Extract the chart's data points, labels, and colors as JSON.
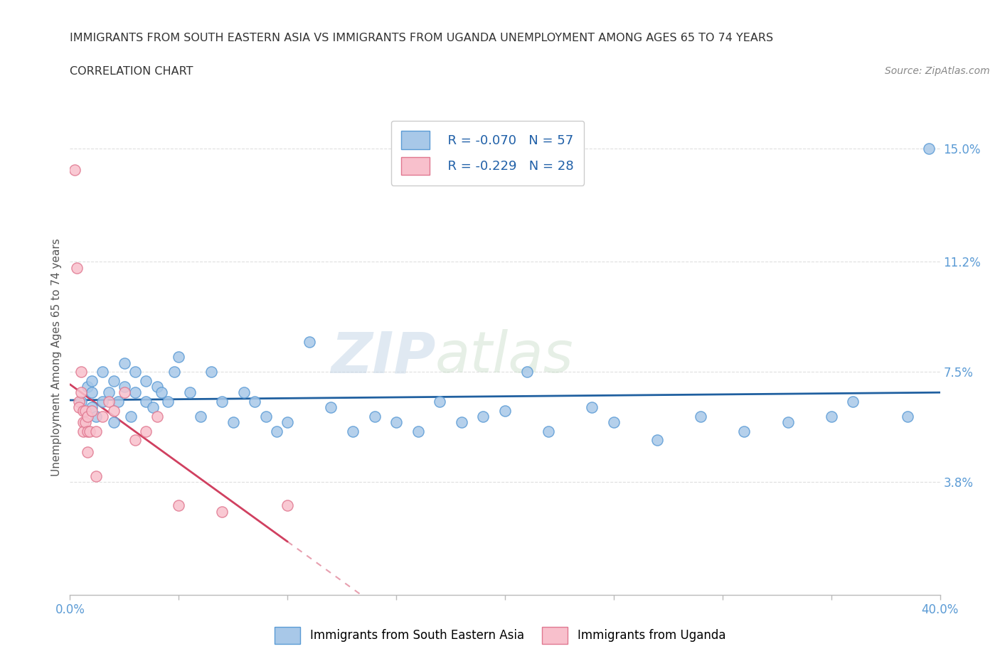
{
  "title_line1": "IMMIGRANTS FROM SOUTH EASTERN ASIA VS IMMIGRANTS FROM UGANDA UNEMPLOYMENT AMONG AGES 65 TO 74 YEARS",
  "title_line2": "CORRELATION CHART",
  "source": "Source: ZipAtlas.com",
  "ylabel": "Unemployment Among Ages 65 to 74 years",
  "xlim": [
    0.0,
    0.4
  ],
  "ylim": [
    0.0,
    0.16
  ],
  "xticks": [
    0.0,
    0.05,
    0.1,
    0.15,
    0.2,
    0.25,
    0.3,
    0.35,
    0.4
  ],
  "xtick_labels": [
    "0.0%",
    "",
    "",
    "",
    "",
    "",
    "",
    "",
    "40.0%"
  ],
  "ytick_right_labels": [
    "3.8%",
    "7.5%",
    "11.2%",
    "15.0%"
  ],
  "ytick_right_values": [
    0.038,
    0.075,
    0.112,
    0.15
  ],
  "watermark": "ZIPatlas",
  "series1_label": "Immigrants from South Eastern Asia",
  "series1_color": "#a8c8e8",
  "series1_edge_color": "#5b9bd5",
  "series1_r": -0.07,
  "series1_n": 57,
  "series1_line_color": "#2060a0",
  "series2_label": "Immigrants from Uganda",
  "series2_color": "#f8c0cc",
  "series2_edge_color": "#e07890",
  "series2_r": -0.229,
  "series2_n": 28,
  "series2_line_color": "#d04060",
  "series1_x": [
    0.005,
    0.008,
    0.01,
    0.01,
    0.01,
    0.012,
    0.015,
    0.015,
    0.018,
    0.02,
    0.02,
    0.022,
    0.025,
    0.025,
    0.028,
    0.03,
    0.03,
    0.035,
    0.035,
    0.038,
    0.04,
    0.042,
    0.045,
    0.048,
    0.05,
    0.055,
    0.06,
    0.065,
    0.07,
    0.075,
    0.08,
    0.085,
    0.09,
    0.095,
    0.1,
    0.11,
    0.12,
    0.13,
    0.14,
    0.15,
    0.16,
    0.17,
    0.18,
    0.19,
    0.2,
    0.21,
    0.22,
    0.24,
    0.25,
    0.27,
    0.29,
    0.31,
    0.33,
    0.35,
    0.36,
    0.385,
    0.395
  ],
  "series1_y": [
    0.065,
    0.07,
    0.063,
    0.068,
    0.072,
    0.06,
    0.065,
    0.075,
    0.068,
    0.058,
    0.072,
    0.065,
    0.07,
    0.078,
    0.06,
    0.068,
    0.075,
    0.065,
    0.072,
    0.063,
    0.07,
    0.068,
    0.065,
    0.075,
    0.08,
    0.068,
    0.06,
    0.075,
    0.065,
    0.058,
    0.068,
    0.065,
    0.06,
    0.055,
    0.058,
    0.085,
    0.063,
    0.055,
    0.06,
    0.058,
    0.055,
    0.065,
    0.058,
    0.06,
    0.062,
    0.075,
    0.055,
    0.063,
    0.058,
    0.052,
    0.06,
    0.055,
    0.058,
    0.06,
    0.065,
    0.06,
    0.15
  ],
  "series2_x": [
    0.002,
    0.003,
    0.004,
    0.004,
    0.005,
    0.005,
    0.006,
    0.006,
    0.006,
    0.007,
    0.007,
    0.008,
    0.008,
    0.008,
    0.009,
    0.01,
    0.012,
    0.012,
    0.015,
    0.018,
    0.02,
    0.025,
    0.03,
    0.035,
    0.04,
    0.05,
    0.07,
    0.1
  ],
  "series2_y": [
    0.143,
    0.11,
    0.065,
    0.063,
    0.075,
    0.068,
    0.062,
    0.058,
    0.055,
    0.062,
    0.058,
    0.06,
    0.055,
    0.048,
    0.055,
    0.062,
    0.055,
    0.04,
    0.06,
    0.065,
    0.062,
    0.068,
    0.052,
    0.055,
    0.06,
    0.03,
    0.028,
    0.03
  ],
  "background_color": "#ffffff",
  "grid_color": "#d8d8d8"
}
